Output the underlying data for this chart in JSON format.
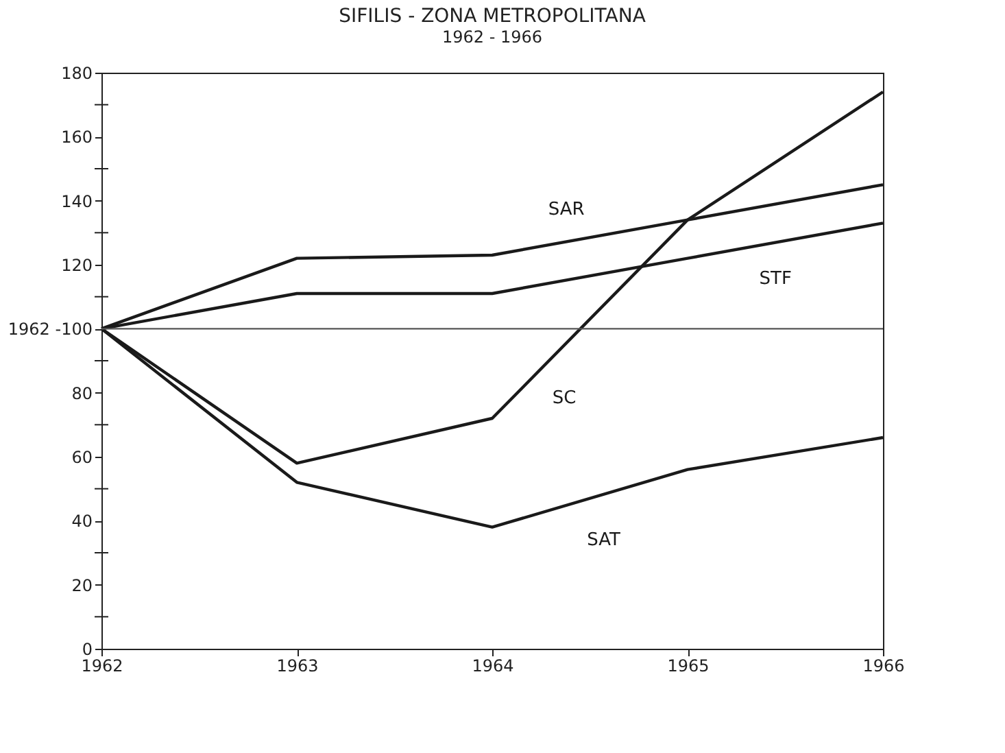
{
  "chart_data": {
    "type": "line",
    "title": "SIFILIS - ZONA METROPOLITANA",
    "subtitle": "1962 - 1966",
    "x": [
      1962,
      1963,
      1964,
      1965,
      1966
    ],
    "series": [
      {
        "name": "SAR",
        "color": "#1a1a1a",
        "values": [
          100,
          122,
          123,
          134,
          145
        ]
      },
      {
        "name": "STF",
        "color": "#1a1a1a",
        "values": [
          100,
          111,
          111,
          122,
          133
        ]
      },
      {
        "name": "SC",
        "color": "#1a1a1a",
        "values": [
          100,
          58,
          72,
          134,
          174
        ]
      },
      {
        "name": "SAT",
        "color": "#1a1a1a",
        "values": [
          100,
          52,
          38,
          56,
          66
        ]
      }
    ],
    "xlim": [
      1962,
      1966
    ],
    "xticks": [
      1962,
      1963,
      1964,
      1965,
      1966
    ],
    "ylim": [
      0,
      180
    ],
    "yticks": [
      0,
      {
        "value": 10,
        "label": null
      },
      20,
      {
        "value": 30,
        "label": null
      },
      40,
      {
        "value": 50,
        "label": null
      },
      60,
      {
        "value": 70,
        "label": null
      },
      80,
      {
        "value": 90,
        "label": null
      },
      {
        "value": 100,
        "label": "1962 -100"
      },
      {
        "value": 110,
        "label": null
      },
      120,
      {
        "value": 130,
        "label": null
      },
      140,
      {
        "value": 150,
        "label": null
      },
      160,
      {
        "value": 170,
        "label": null
      },
      180
    ],
    "ref_lines": [
      {
        "axis": "y",
        "value": 100,
        "label": null
      }
    ],
    "grid": false,
    "legend": false,
    "marker": "none",
    "line_style": "solid"
  }
}
